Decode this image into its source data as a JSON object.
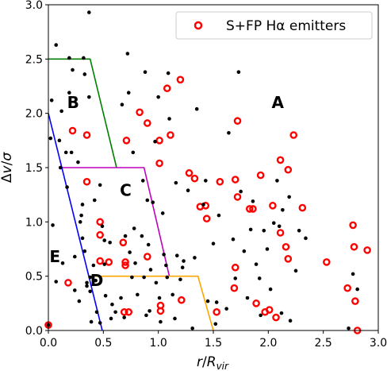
{
  "chart_data": {
    "type": "scatter",
    "xlabel": "r/R_vir",
    "ylabel": "Δv/σ",
    "xlim": [
      0,
      3.0
    ],
    "ylim": [
      0,
      3.0
    ],
    "xticks": [
      "0.0",
      "0.5",
      "1.0",
      "1.5",
      "2.0",
      "2.5",
      "3.0"
    ],
    "yticks": [
      "0.0",
      "0.5",
      "1.0",
      "1.5",
      "2.0",
      "2.5",
      "3.0"
    ],
    "legend": {
      "label": "S+FP Hα emitters",
      "position": "top-right"
    },
    "colors": {
      "points": "#000000",
      "emitters": "#ff0000",
      "B": "#008000",
      "C": "#bf00bf",
      "D": "#ffa500",
      "E": "#0000ff"
    },
    "boundaries": [
      {
        "name": "B",
        "color": "#008000",
        "x": [
          0.0,
          0.38,
          0.62
        ],
        "y": [
          2.5,
          2.5,
          1.5
        ]
      },
      {
        "name": "C",
        "color": "#bf00bf",
        "x": [
          0.12,
          0.87,
          1.1
        ],
        "y": [
          1.5,
          1.5,
          0.5
        ]
      },
      {
        "name": "D",
        "color": "#ffa500",
        "x": [
          0.37,
          1.36,
          1.5
        ],
        "y": [
          0.5,
          0.5,
          0.0
        ]
      },
      {
        "name": "E",
        "color": "#0000ff",
        "x": [
          0.0,
          0.49
        ],
        "y": [
          2.0,
          0.0
        ]
      }
    ],
    "region_labels": [
      {
        "text": "A",
        "x": 2.03,
        "y": 2.05
      },
      {
        "text": "B",
        "x": 0.17,
        "y": 2.05
      },
      {
        "text": "C",
        "x": 0.65,
        "y": 1.24
      },
      {
        "text": "D",
        "x": 0.38,
        "y": 0.41
      },
      {
        "text": "E",
        "x": 0.01,
        "y": 0.63
      }
    ],
    "emitters": [
      [
        0.0,
        0.05
      ],
      [
        0.22,
        1.84
      ],
      [
        0.35,
        1.8
      ],
      [
        0.18,
        0.44
      ],
      [
        0.35,
        1.37
      ],
      [
        0.47,
        1.0
      ],
      [
        0.47,
        0.88
      ],
      [
        0.47,
        0.64
      ],
      [
        0.55,
        0.63
      ],
      [
        0.68,
        0.81
      ],
      [
        0.7,
        0.63
      ],
      [
        0.7,
        0.6
      ],
      [
        0.69,
        0.17
      ],
      [
        0.73,
        0.17
      ],
      [
        0.71,
        1.75
      ],
      [
        0.83,
        2.01
      ],
      [
        0.9,
        1.91
      ],
      [
        0.9,
        0.68
      ],
      [
        1.01,
        1.75
      ],
      [
        1.01,
        1.54
      ],
      [
        1.08,
        2.23
      ],
      [
        1.11,
        1.8
      ],
      [
        1.02,
        0.23
      ],
      [
        1.02,
        0.18
      ],
      [
        1.2,
        2.31
      ],
      [
        1.21,
        0.28
      ],
      [
        1.28,
        1.45
      ],
      [
        1.33,
        1.4
      ],
      [
        1.38,
        1.14
      ],
      [
        1.43,
        1.15
      ],
      [
        1.44,
        1.03
      ],
      [
        1.53,
        0.17
      ],
      [
        1.56,
        1.37
      ],
      [
        1.7,
        1.39
      ],
      [
        1.72,
        1.93
      ],
      [
        1.72,
        1.23
      ],
      [
        1.7,
        0.58
      ],
      [
        1.69,
        0.39
      ],
      [
        1.83,
        1.12
      ],
      [
        1.86,
        1.12
      ],
      [
        1.89,
        0.25
      ],
      [
        1.93,
        1.43
      ],
      [
        1.97,
        0.17
      ],
      [
        2.01,
        0.19
      ],
      [
        2.04,
        1.15
      ],
      [
        2.07,
        0.12
      ],
      [
        2.11,
        1.57
      ],
      [
        2.11,
        0.9
      ],
      [
        2.16,
        0.77
      ],
      [
        2.18,
        1.48
      ],
      [
        2.18,
        0.66
      ],
      [
        2.23,
        1.8
      ],
      [
        2.31,
        1.13
      ],
      [
        2.53,
        0.63
      ],
      [
        2.72,
        0.39
      ],
      [
        2.77,
        0.97
      ],
      [
        2.78,
        0.77
      ],
      [
        2.79,
        0.27
      ],
      [
        2.81,
        0.0
      ],
      [
        2.9,
        0.74
      ]
    ],
    "points": [
      [
        0.0,
        0.05
      ],
      [
        0.02,
        1.77
      ],
      [
        0.03,
        2.12
      ],
      [
        0.04,
        0.97
      ],
      [
        0.07,
        2.63
      ],
      [
        0.07,
        0.45
      ],
      [
        0.1,
        1.75
      ],
      [
        0.11,
        1.5
      ],
      [
        0.12,
        2.02
      ],
      [
        0.13,
        0.62
      ],
      [
        0.16,
        1.64
      ],
      [
        0.17,
        1.32
      ],
      [
        0.19,
        2.51
      ],
      [
        0.19,
        2.19
      ],
      [
        0.21,
        1.64
      ],
      [
        0.22,
        2.4
      ],
      [
        0.24,
        0.37
      ],
      [
        0.24,
        0.68
      ],
      [
        0.27,
        1.55
      ],
      [
        0.28,
        0.27
      ],
      [
        0.29,
        1.0
      ],
      [
        0.3,
        1.06
      ],
      [
        0.31,
        0.85
      ],
      [
        0.31,
        1.16
      ],
      [
        0.32,
        2.51
      ],
      [
        0.33,
        2.36
      ],
      [
        0.33,
        0.73
      ],
      [
        0.35,
        0.41
      ],
      [
        0.35,
        0.44
      ],
      [
        0.37,
        2.15
      ],
      [
        0.37,
        2.93
      ],
      [
        0.38,
        0.49
      ],
      [
        0.38,
        0.36
      ],
      [
        0.39,
        0.08
      ],
      [
        0.41,
        0.6
      ],
      [
        0.42,
        1.2
      ],
      [
        0.43,
        0.46
      ],
      [
        0.44,
        0.17
      ],
      [
        0.47,
        1.34
      ],
      [
        0.47,
        0.07
      ],
      [
        0.49,
        0.96
      ],
      [
        0.51,
        0.83
      ],
      [
        0.51,
        0.61
      ],
      [
        0.52,
        0.32
      ],
      [
        0.56,
        0.81
      ],
      [
        0.57,
        0.11
      ],
      [
        0.58,
        0.24
      ],
      [
        0.61,
        0.17
      ],
      [
        0.66,
        0.3
      ],
      [
        0.67,
        2.08
      ],
      [
        0.69,
        0.12
      ],
      [
        0.7,
        0.87
      ],
      [
        0.72,
        2.55
      ],
      [
        0.73,
        2.19
      ],
      [
        0.74,
        0.72
      ],
      [
        0.76,
        0.49
      ],
      [
        0.77,
        1.64
      ],
      [
        0.78,
        0.94
      ],
      [
        0.79,
        0.62
      ],
      [
        0.81,
        0.33
      ],
      [
        0.85,
        0.87
      ],
      [
        0.86,
        1.38
      ],
      [
        0.87,
        0.49
      ],
      [
        0.88,
        2.38
      ],
      [
        0.89,
        0.14
      ],
      [
        0.9,
        1.2
      ],
      [
        0.91,
        0.79
      ],
      [
        0.92,
        0.18
      ],
      [
        0.93,
        0.56
      ],
      [
        0.95,
        1.18
      ],
      [
        0.97,
        1.74
      ],
      [
        0.98,
        0.44
      ],
      [
        1.0,
        2.15
      ],
      [
        1.01,
        0.3
      ],
      [
        1.02,
        0.08
      ],
      [
        1.04,
        1.08
      ],
      [
        1.05,
        0.7
      ],
      [
        1.07,
        0.6
      ],
      [
        1.08,
        0.49
      ],
      [
        1.09,
        2.37
      ],
      [
        1.1,
        1.95
      ],
      [
        1.13,
        0.33
      ],
      [
        1.15,
        0.11
      ],
      [
        1.16,
        1.36
      ],
      [
        1.17,
        0.69
      ],
      [
        1.2,
        0.47
      ],
      [
        1.22,
        0.58
      ],
      [
        1.23,
        0.64
      ],
      [
        1.27,
        1.29
      ],
      [
        1.31,
        0.02
      ],
      [
        1.33,
        0.67
      ],
      [
        1.35,
        2.04
      ],
      [
        1.41,
        1.16
      ],
      [
        1.43,
        1.38
      ],
      [
        1.45,
        0.27
      ],
      [
        1.5,
        0.8
      ],
      [
        1.52,
        0.06
      ],
      [
        1.53,
        0.26
      ],
      [
        1.55,
        1.06
      ],
      [
        1.62,
        0.2
      ],
      [
        1.64,
        1.82
      ],
      [
        1.68,
        0.84
      ],
      [
        1.7,
        0.48
      ],
      [
        1.73,
        2.38
      ],
      [
        1.75,
        1.28
      ],
      [
        1.78,
        0.73
      ],
      [
        1.81,
        0.3
      ],
      [
        1.84,
        0.93
      ],
      [
        1.86,
        1.19
      ],
      [
        1.89,
        0.61
      ],
      [
        1.92,
        0.48
      ],
      [
        1.93,
        0.14
      ],
      [
        1.96,
        0.92
      ],
      [
        1.99,
        0.75
      ],
      [
        2.02,
        0.38
      ],
      [
        2.05,
        0.99
      ],
      [
        2.08,
        1.38
      ],
      [
        2.1,
        0.96
      ],
      [
        2.12,
        0.16
      ],
      [
        2.13,
        1.11
      ],
      [
        2.19,
        1.23
      ],
      [
        2.2,
        0.09
      ],
      [
        2.25,
        0.55
      ],
      [
        2.28,
        0.92
      ],
      [
        2.34,
        0.85
      ],
      [
        2.73,
        0.02
      ],
      [
        2.77,
        0.52
      ],
      [
        2.81,
        0.38
      ]
    ]
  }
}
